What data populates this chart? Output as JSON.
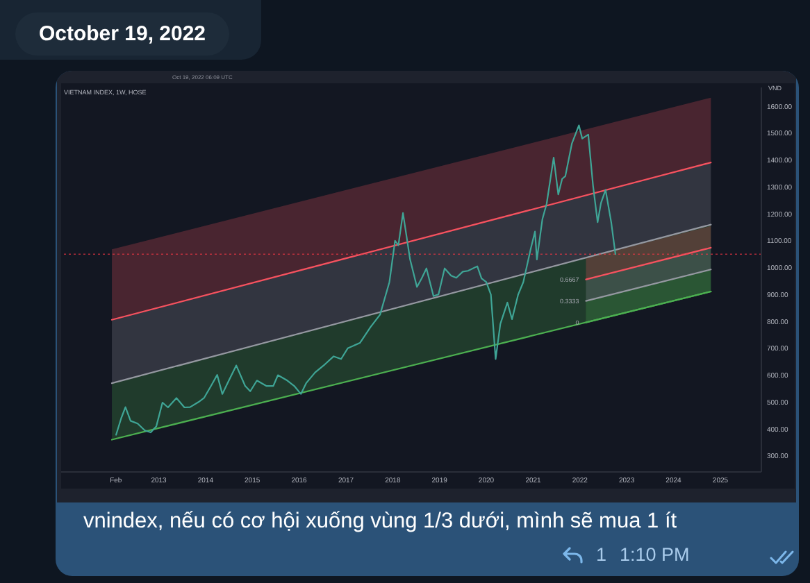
{
  "chart_data": {
    "type": "line",
    "title": "VIETNAM INDEX, 1W, HOSE",
    "ylabel": "VND",
    "xlim": [
      "2010-12-01",
      "2025-11-17"
    ],
    "xticks": [
      {
        "value": "2012-02-01",
        "label": "Feb"
      },
      {
        "value": "2013-01-01",
        "label": "2013"
      },
      {
        "value": "2014-01-01",
        "label": "2014"
      },
      {
        "value": "2015-01-01",
        "label": "2015"
      },
      {
        "value": "2016-01-01",
        "label": "2016"
      },
      {
        "value": "2017-01-01",
        "label": "2017"
      },
      {
        "value": "2018-01-01",
        "label": "2018"
      },
      {
        "value": "2019-01-01",
        "label": "2019"
      },
      {
        "value": "2020-01-01",
        "label": "2020"
      },
      {
        "value": "2021-01-01",
        "label": "2021"
      },
      {
        "value": "2022-01-01",
        "label": "2022"
      },
      {
        "value": "2023-01-01",
        "label": "2023"
      },
      {
        "value": "2024-01-01",
        "label": "2024"
      },
      {
        "value": "2025-01-01",
        "label": "2025"
      }
    ],
    "ylim": [
      240,
      1670
    ],
    "yticks": [
      {
        "value": 300,
        "label": "300.00"
      },
      {
        "value": 400,
        "label": "400.00"
      },
      {
        "value": 500,
        "label": "500.00"
      },
      {
        "value": 600,
        "label": "600.00"
      },
      {
        "value": 700,
        "label": "700.00"
      },
      {
        "value": 800,
        "label": "800.00"
      },
      {
        "value": 900,
        "label": "900.00"
      },
      {
        "value": 1000,
        "label": "1000.00"
      },
      {
        "value": 1100,
        "label": "1100.00"
      },
      {
        "value": 1200,
        "label": "1200.00"
      },
      {
        "value": 1300,
        "label": "1300.00"
      },
      {
        "value": 1400,
        "label": "1400.00"
      },
      {
        "value": 1500,
        "label": "1500.00"
      },
      {
        "value": 1600,
        "label": "1600.00"
      }
    ],
    "series": [
      {
        "type": "line",
        "color": "#f7525f",
        "x": [
          "2012-01-01",
          "2024-10-19"
        ],
        "values": [
          806,
          1391
        ],
        "lower": [
          806,
          1391
        ],
        "upper": [
          1068,
          1632
        ]
      },
      {
        "type": "line",
        "color": "#9598a1",
        "x": [
          "2012-01-01",
          "2024-10-19"
        ],
        "values": [
          570,
          1160
        ],
        "lower": [
          570,
          1160
        ],
        "upper": [
          806,
          1391
        ]
      },
      {
        "type": "line",
        "color": "#4caf50",
        "x": [
          "2012-01-01",
          "2024-10-19"
        ],
        "values": [
          360,
          911
        ],
        "lower": [
          360,
          911
        ],
        "upper": [
          570,
          1160
        ]
      },
      {
        "type": "line",
        "color": "#f7525f",
        "x": [
          "2022-02-17",
          "2024-10-19"
        ],
        "values": [
          956,
          1074
        ],
        "lower": [
          956,
          1074
        ],
        "upper": [
          1036,
          1155
        ]
      },
      {
        "type": "line",
        "color": "#9598a1",
        "x": [
          "2022-02-17",
          "2024-10-19"
        ],
        "values": [
          876,
          993
        ],
        "lower": [
          876,
          993
        ],
        "upper": [
          956,
          1074
        ]
      },
      {
        "type": "line",
        "color": "#4caf50",
        "x": [
          "2022-02-17",
          "2024-10-19"
        ],
        "values": [
          796,
          911
        ],
        "lower": [
          796,
          911
        ],
        "upper": [
          876,
          993
        ]
      },
      {
        "color": "#3fa596",
        "x": [
          "2012-02-03",
          "2012-03-14",
          "2012-04-16",
          "2012-05-26",
          "2012-07-20",
          "2012-09-13",
          "2012-10-30",
          "2012-12-13",
          "2013-01-30",
          "2013-03-14",
          "2013-05-19",
          "2013-07-20",
          "2013-09-02",
          "2013-11-07",
          "2013-12-20",
          "2014-02-13",
          "2014-04-02",
          "2014-05-12",
          "2014-07-02",
          "2014-08-29",
          "2014-11-06",
          "2014-12-16",
          "2015-02-06",
          "2015-04-20",
          "2015-06-14",
          "2015-07-20",
          "2015-10-01",
          "2015-11-24",
          "2016-01-15",
          "2016-02-25",
          "2016-05-05",
          "2016-07-20",
          "2016-09-27",
          "2016-11-24",
          "2017-01-15",
          "2017-04-20",
          "2017-07-13",
          "2017-09-24",
          "2017-12-06",
          "2018-01-19",
          "2018-02-14",
          "2018-03-22",
          "2018-05-16",
          "2018-07-09",
          "2018-08-15",
          "2018-09-21",
          "2018-11-15",
          "2018-12-24",
          "2019-02-10",
          "2019-04-02",
          "2019-05-12",
          "2019-07-02",
          "2019-08-11",
          "2019-10-23",
          "2019-11-25",
          "2020-01-01",
          "2020-02-06",
          "2020-03-14",
          "2020-04-20",
          "2020-06-14",
          "2020-07-20",
          "2020-09-06",
          "2020-10-16",
          "2020-12-13",
          "2021-01-15",
          "2021-01-30",
          "2021-03-14",
          "2021-04-16",
          "2021-06-10",
          "2021-07-16",
          "2021-08-15",
          "2021-09-09",
          "2021-10-30",
          "2021-12-24",
          "2022-01-19",
          "2022-03-07",
          "2022-04-13",
          "2022-05-19",
          "2022-06-14",
          "2022-07-20",
          "2022-09-02",
          "2022-10-05"
        ],
        "values": [
          378,
          440,
          481,
          430,
          420,
          395,
          387,
          410,
          498,
          480,
          515,
          480,
          481,
          500,
          515,
          560,
          601,
          530,
          580,
          636,
          560,
          540,
          580,
          560,
          560,
          600,
          580,
          560,
          530,
          570,
          610,
          640,
          670,
          660,
          700,
          720,
          780,
          825,
          946,
          1100,
          1083,
          1203,
          1031,
          928,
          960,
          997,
          894,
          900,
          997,
          970,
          962,
          985,
          988,
          1005,
          960,
          946,
          900,
          660,
          791,
          870,
          808,
          900,
          946,
          1070,
          1134,
          1030,
          1180,
          1237,
          1409,
          1272,
          1330,
          1340,
          1461,
          1529,
          1480,
          1495,
          1306,
          1169,
          1240,
          1289,
          1169,
          1050
        ]
      }
    ],
    "ref_lines": [
      {
        "axis": "y",
        "value": 1050,
        "color": "#f23645",
        "line_style": "dotted"
      }
    ],
    "annotations": [
      "October 19, 2022",
      "Oct 19, 2022 06:09 UTC",
      {
        "text": "0.6667",
        "x": "2022-02-17",
        "y": 956
      },
      {
        "text": "0.3333",
        "x": "2022-02-17",
        "y": 876
      },
      {
        "text": "0",
        "x": "2022-02-17",
        "y": 796
      },
      "vnindex, nếu có cơ hội xuống vùng 1/3 dưới, mình sẽ mua 1 ít",
      "1",
      "1:10 PM"
    ]
  }
}
